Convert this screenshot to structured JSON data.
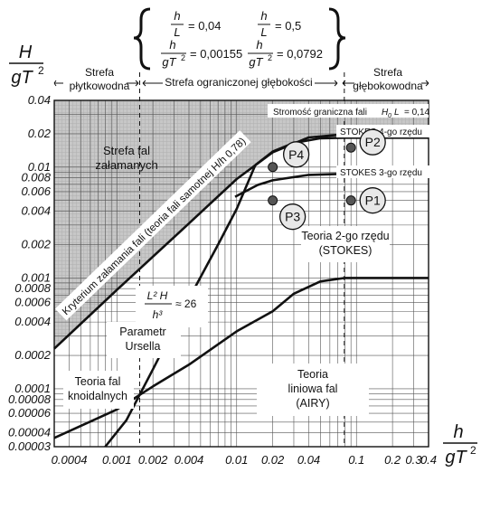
{
  "header": {
    "formulas": [
      {
        "lhs_num": "h",
        "lhs_den": "L",
        "value": "= 0,04"
      },
      {
        "lhs_num": "h",
        "lhs_den": "L",
        "value": "= 0,5"
      },
      {
        "lhs_num": "h",
        "lhs_den": "gT",
        "sup": "2",
        "value": "= 0,00155"
      },
      {
        "lhs_num": "h",
        "lhs_den": "gT",
        "sup": "2",
        "value": "= 0,0792"
      }
    ]
  },
  "y_axis": {
    "num": "H",
    "den": "gT",
    "sup": "2"
  },
  "x_axis": {
    "num": "h",
    "den": "gT",
    "sup": "2"
  },
  "zones": [
    {
      "line1": "Strefa",
      "line2": "płytkowodna"
    },
    {
      "line1": "Strefa ograniczonej głębokości",
      "line2": ""
    },
    {
      "line1": "Strefa",
      "line2": "głębokowodna"
    }
  ],
  "labels": {
    "breaking_zone": [
      "Strefa fal",
      "załamanych"
    ],
    "breaking_criterion": "Kryterium załamania fali (teoria fali samotnej  H/h 0,78)",
    "steepness_limit": "Stromość graniczna fali",
    "steepness_value": "H",
    "steepness_sub": "0",
    "steepness_den": "L",
    "steepness_eq": "= 0,14",
    "stokes4": "STOKES 4-go rzędu",
    "stokes3": "STOKES 3-go rzędu",
    "stokes2": [
      "Teoria 2-go rzędu",
      "(STOKES)"
    ],
    "ursell_formula": {
      "num": "L² H",
      "den": "h³",
      "value": "≈ 26"
    },
    "ursell": [
      "Parametr",
      "Ursella"
    ],
    "knoidal": [
      "Teoria fal",
      "knoidalnych"
    ],
    "airy": [
      "Teoria",
      "liniowa  fal",
      "(AIRY)"
    ]
  },
  "points": [
    "P1",
    "P2",
    "P3",
    "P4"
  ],
  "chart_data": {
    "type": "line",
    "xscale": "log",
    "yscale": "log",
    "xlim": [
      0.0003,
      0.4
    ],
    "ylim": [
      3e-05,
      0.04
    ],
    "xticks": [
      {
        "value": 0.0004,
        "label": "0.0004"
      },
      {
        "value": 0.001,
        "label": "0.001"
      },
      {
        "value": 0.002,
        "label": "0.002"
      },
      {
        "value": 0.004,
        "label": "0.004"
      },
      {
        "value": 0.01,
        "label": "0.01"
      },
      {
        "value": 0.02,
        "label": "0.02"
      },
      {
        "value": 0.04,
        "label": "0.04"
      },
      {
        "value": 0.1,
        "label": "0.1"
      },
      {
        "value": 0.2,
        "label": "0.2"
      },
      {
        "value": 0.3,
        "label": "0.3"
      },
      {
        "value": 0.4,
        "label": "0.4"
      }
    ],
    "yticks": [
      {
        "value": 0.04,
        "label": "0.04"
      },
      {
        "value": 0.02,
        "label": "0.02"
      },
      {
        "value": 0.01,
        "label": "0.01"
      },
      {
        "value": 0.008,
        "label": "0.008"
      },
      {
        "value": 0.006,
        "label": "0.006"
      },
      {
        "value": 0.004,
        "label": "0.004"
      },
      {
        "value": 0.002,
        "label": "0.002"
      },
      {
        "value": 0.001,
        "label": "0.001"
      },
      {
        "value": 0.0008,
        "label": "0.0008"
      },
      {
        "value": 0.0006,
        "label": "0.0006"
      },
      {
        "value": 0.0004,
        "label": "0.0004"
      },
      {
        "value": 0.0002,
        "label": "0.0002"
      },
      {
        "value": 0.0001,
        "label": "0.0001"
      },
      {
        "value": 8e-05,
        "label": "0.00008"
      },
      {
        "value": 6e-05,
        "label": "0.00006"
      },
      {
        "value": 4e-05,
        "label": "0.00004"
      },
      {
        "value": 3e-05,
        "label": "0.00003"
      }
    ],
    "zone_boundaries": [
      0.00155,
      0.0792
    ],
    "curves": [
      {
        "id": "breaking",
        "points": [
          [
            0.0003,
            0.00023
          ],
          [
            0.001,
            0.00078
          ],
          [
            0.004,
            0.0031
          ],
          [
            0.01,
            0.0078
          ],
          [
            0.02,
            0.0136
          ],
          [
            0.04,
            0.0185
          ],
          [
            0.07,
            0.0195
          ],
          [
            0.4,
            0.0197
          ]
        ]
      },
      {
        "id": "stokes4",
        "points": [
          [
            0.0143,
            0.0104
          ],
          [
            0.02,
            0.0138
          ],
          [
            0.03,
            0.0165
          ],
          [
            0.05,
            0.0182
          ],
          [
            0.08,
            0.0184
          ],
          [
            0.4,
            0.0184
          ]
        ]
      },
      {
        "id": "stokes3",
        "points": [
          [
            0.0097,
            0.0054
          ],
          [
            0.015,
            0.0069
          ],
          [
            0.02,
            0.0076
          ],
          [
            0.04,
            0.0085
          ],
          [
            0.08,
            0.0087
          ],
          [
            0.4,
            0.0087
          ]
        ]
      },
      {
        "id": "stokes2_airy",
        "points": [
          [
            0.0003,
            3.6e-05
          ],
          [
            0.001,
            6.5e-05
          ],
          [
            0.002,
            0.000105
          ],
          [
            0.004,
            0.000165
          ],
          [
            0.01,
            0.00033
          ],
          [
            0.02,
            0.0005
          ],
          [
            0.03,
            0.00072
          ],
          [
            0.05,
            0.00093
          ],
          [
            0.08,
            0.001
          ],
          [
            0.4,
            0.001
          ]
        ]
      },
      {
        "id": "ursell",
        "points": [
          [
            0.0008,
            3e-05
          ],
          [
            0.0012,
            5.2e-05
          ],
          [
            0.002,
            0.00015
          ],
          [
            0.004,
            0.00065
          ],
          [
            0.007,
            0.002
          ],
          [
            0.01,
            0.0042
          ],
          [
            0.0143,
            0.0104
          ]
        ]
      }
    ],
    "markers": [
      {
        "label": "P1",
        "x": 0.09,
        "y": 0.005
      },
      {
        "label": "P2",
        "x": 0.09,
        "y": 0.015
      },
      {
        "label": "P3",
        "x": 0.02,
        "y": 0.005
      },
      {
        "label": "P4",
        "x": 0.02,
        "y": 0.01
      }
    ]
  }
}
